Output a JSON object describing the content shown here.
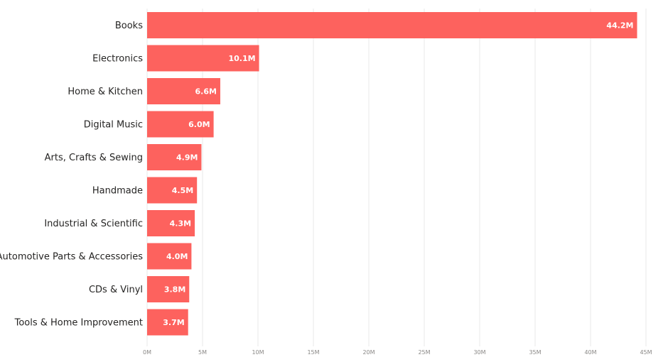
{
  "chart_data": {
    "type": "bar",
    "orientation": "horizontal",
    "categories": [
      "Books",
      "Electronics",
      "Home & Kitchen",
      "Digital Music",
      "Arts, Crafts & Sewing",
      "Handmade",
      "Industrial & Scientific",
      "Automotive Parts & Accessories",
      "CDs & Vinyl",
      "Tools & Home Improvement"
    ],
    "values": [
      44.2,
      10.1,
      6.6,
      6.0,
      4.9,
      4.5,
      4.3,
      4.0,
      3.8,
      3.7
    ],
    "data_labels": [
      "44.2M",
      "10.1M",
      "6.6M",
      "6.0M",
      "4.9M",
      "4.5M",
      "4.3M",
      "4.0M",
      "3.8M",
      "3.7M"
    ],
    "x_ticks": [
      0,
      5,
      10,
      15,
      20,
      25,
      30,
      35,
      40,
      45
    ],
    "x_tick_labels": [
      "0M",
      "5M",
      "10M",
      "15M",
      "20M",
      "25M",
      "30M",
      "35M",
      "40M",
      "45M"
    ],
    "xlim": [
      0,
      45
    ],
    "unit": "M",
    "bar_color": "#fd625e",
    "grid": true,
    "title": "",
    "xlabel": "",
    "ylabel": ""
  }
}
